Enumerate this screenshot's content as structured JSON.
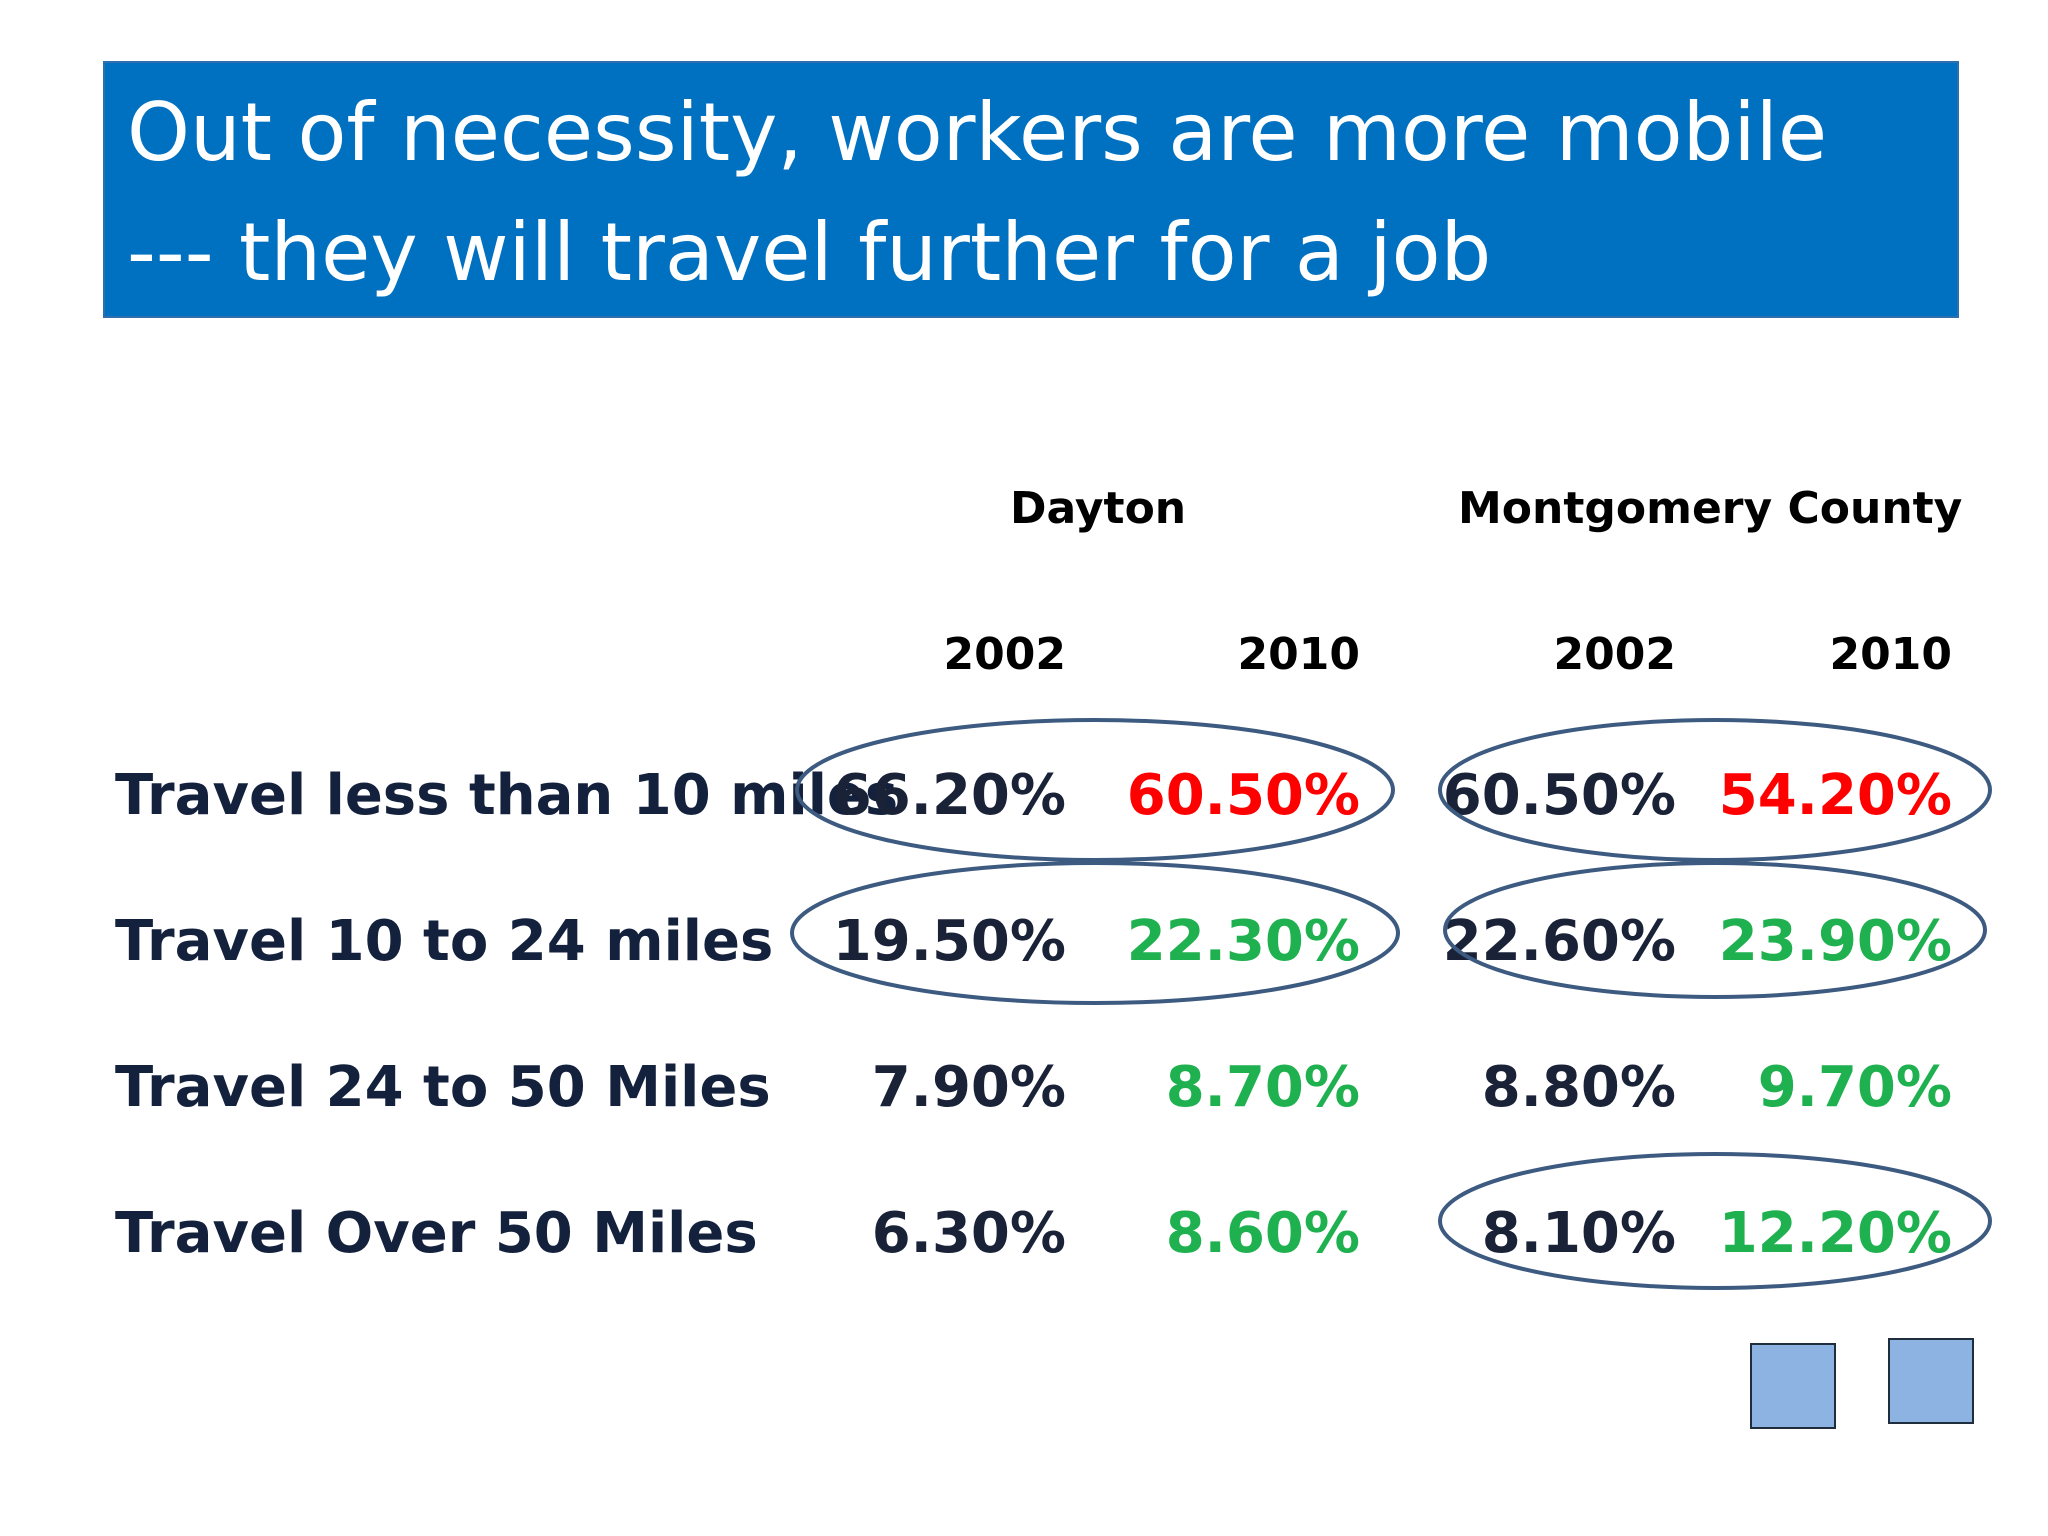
{
  "title": {
    "line1": "Out of necessity, workers are more mobile",
    "line2": "--- they will travel further for a job"
  },
  "table": {
    "groups": [
      "Dayton",
      "Montgomery County"
    ],
    "years": [
      "2002",
      "2010",
      "2002",
      "2010"
    ],
    "rows": [
      {
        "label": "Travel less than 10 miles",
        "values": [
          "66.20%",
          "60.50%",
          "60.50%",
          "54.20%"
        ],
        "colors": [
          "#1a2238",
          "#ff0000",
          "#1a2238",
          "#ff0000"
        ]
      },
      {
        "label": "Travel 10 to 24 miles",
        "values": [
          "19.50%",
          "22.30%",
          "22.60%",
          "23.90%"
        ],
        "colors": [
          "#1a2238",
          "#1fb04f",
          "#1a2238",
          "#1fb04f"
        ]
      },
      {
        "label": "Travel 24 to 50 Miles",
        "values": [
          "7.90%",
          "8.70%",
          "8.80%",
          "9.70%"
        ],
        "colors": [
          "#1a2238",
          "#1fb04f",
          "#1a2238",
          "#1fb04f"
        ]
      },
      {
        "label": "Travel Over 50 Miles",
        "values": [
          "6.30%",
          "8.60%",
          "8.10%",
          "12.20%"
        ],
        "colors": [
          "#1a2238",
          "#1fb04f",
          "#1a2238",
          "#1fb04f"
        ]
      }
    ]
  },
  "colors": {
    "title_bg": "#0070c0",
    "decrease": "#ff0000",
    "increase": "#1fb04f",
    "neutral": "#1a2238",
    "oval_stroke": "#3d5a80",
    "square_fill": "#8db3e2"
  }
}
